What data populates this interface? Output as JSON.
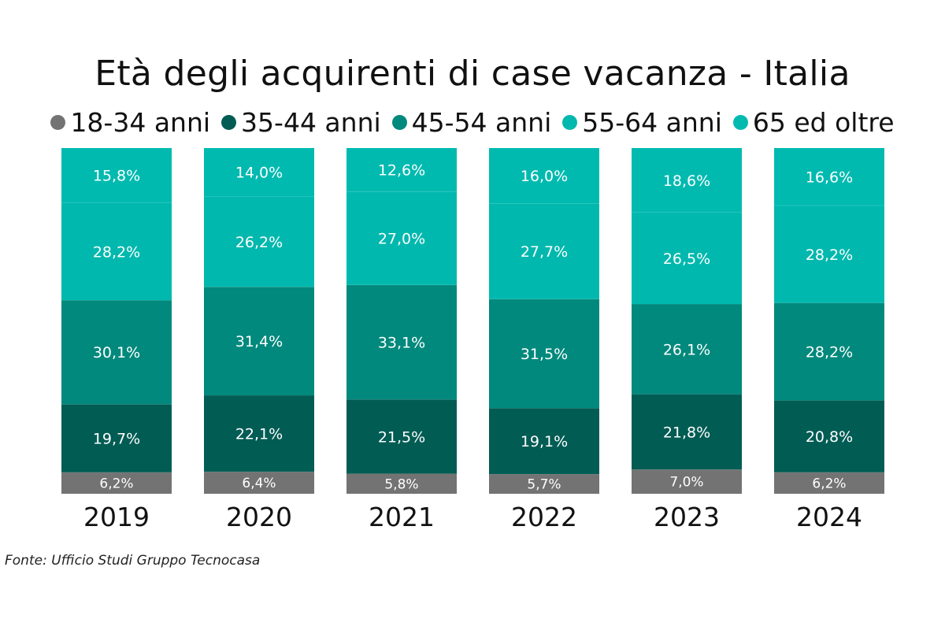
{
  "chart_data": {
    "type": "bar",
    "stacked": true,
    "normalized_percent": true,
    "title": "Età degli acquirenti di case vacanza - Italia",
    "xlabel": "",
    "ylabel": "",
    "ylim": [
      0,
      100
    ],
    "grid": false,
    "legend_position": "top",
    "categories": [
      "2019",
      "2020",
      "2021",
      "2022",
      "2023",
      "2024"
    ],
    "series": [
      {
        "name": "18-34 anni",
        "color": "#737373",
        "values": [
          6.2,
          6.4,
          5.8,
          5.7,
          7.0,
          6.2
        ],
        "labels": [
          "6,2%",
          "6,4%",
          "5,8%",
          "5,7%",
          "7,0%",
          "6,2%"
        ]
      },
      {
        "name": "35-44 anni",
        "color": "#015c54",
        "values": [
          19.7,
          22.1,
          21.5,
          19.1,
          21.8,
          20.8
        ],
        "labels": [
          "19,7%",
          "22,1%",
          "21,5%",
          "19,1%",
          "21,8%",
          "20,8%"
        ]
      },
      {
        "name": "45-54 anni",
        "color": "#00897c",
        "values": [
          30.1,
          31.4,
          33.1,
          31.5,
          26.1,
          28.2
        ],
        "labels": [
          "30,1%",
          "31,4%",
          "33,1%",
          "31,5%",
          "26,1%",
          "28,2%"
        ]
      },
      {
        "name": "55-64 anni",
        "color": "#00b8ad",
        "values": [
          28.2,
          26.2,
          27.0,
          27.7,
          26.5,
          28.2
        ],
        "labels": [
          "28,2%",
          "26,2%",
          "27,0%",
          "27,7%",
          "26,5%",
          "28,2%"
        ]
      },
      {
        "name": "65 ed oltre",
        "color": "#00bab0",
        "values": [
          15.8,
          14.0,
          12.6,
          16.0,
          18.6,
          16.6
        ],
        "labels": [
          "15,8%",
          "14,0%",
          "12,6%",
          "16,0%",
          "18,6%",
          "16,6%"
        ]
      }
    ]
  },
  "source": "Fonte: Ufficio Studi Gruppo Tecnocasa",
  "colors": {
    "divider": "#ffffff",
    "label_text": "#ffffff",
    "axis_text": "#111111"
  }
}
